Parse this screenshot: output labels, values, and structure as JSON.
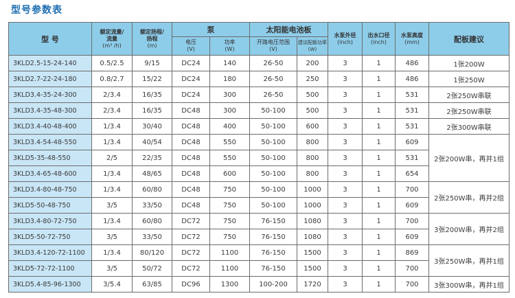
{
  "title": "型号参数表",
  "headers": {
    "model": "型 号",
    "flow": [
      "额定流量/",
      "流量",
      "(m³ /h)"
    ],
    "head": [
      "额定扬程/",
      "扬程",
      "(m)"
    ],
    "pump": "泵",
    "pump_voltage": [
      "电压",
      "(V)"
    ],
    "pump_power": [
      "功率",
      "(W)"
    ],
    "solar": "太阳能电池板",
    "solar_voltage": [
      "开路电压范围",
      "(V)"
    ],
    "solar_power": [
      "建议配板功率",
      "(W)"
    ],
    "outer_diameter": [
      "水泵外径",
      "(inch)"
    ],
    "outlet": [
      "出水口径",
      "(inch)"
    ],
    "height": [
      "水泵高度",
      "(mm)"
    ],
    "suggestion": "配板建议"
  },
  "rows": [
    [
      "3KLD2.5-15-24-140",
      "0.5/2.5",
      "9/15",
      "DC24",
      "140",
      "26-50",
      "200",
      "3",
      "1",
      "486"
    ],
    [
      "3KLD2.7-22-24-180",
      "0.8/2.7",
      "15/22",
      "DC24",
      "180",
      "26-50",
      "250",
      "3",
      "1",
      "486"
    ],
    [
      "3KLD3.4-35-24-300",
      "2/3.4",
      "16/35",
      "DC24",
      "300",
      "26-50",
      "500",
      "3",
      "1",
      "531"
    ],
    [
      "3KLD3.4-35-48-300",
      "2/3.4",
      "16/35",
      "DC48",
      "300",
      "50-100",
      "500",
      "3",
      "1",
      "531"
    ],
    [
      "3KLD3.4-40-48-400",
      "1/3.4",
      "30/40",
      "DC48",
      "400",
      "50-100",
      "600",
      "3",
      "1",
      "531"
    ],
    [
      "3KLD3.4-54-48-550",
      "1/3.4",
      "40/54",
      "DC48",
      "550",
      "50-100",
      "800",
      "3",
      "1",
      "609"
    ],
    [
      "3KLD5-35-48-550",
      "2/5",
      "22/35",
      "DC48",
      "550",
      "50-100",
      "800",
      "3",
      "1",
      "531"
    ],
    [
      "3KLD3.4-65-48-600",
      "1/3.4",
      "48/65",
      "DC48",
      "600",
      "50-100",
      "800",
      "3",
      "1",
      "654"
    ],
    [
      "3KLD3.4-80-48-750",
      "1/3.4",
      "60/80",
      "DC48",
      "750",
      "50-100",
      "1000",
      "3",
      "1",
      "700"
    ],
    [
      "3KLD5-50-48-750",
      "3/5",
      "33/50",
      "DC48",
      "750",
      "50-100",
      "1000",
      "3",
      "1",
      "609"
    ],
    [
      "3KLD3.4-80-72-750",
      "1/3.4",
      "60/80",
      "DC72",
      "750",
      "76-150",
      "1080",
      "3",
      "1",
      "700"
    ],
    [
      "3KLD5-50-72-750",
      "3/5",
      "33/50",
      "DC72",
      "750",
      "76-150",
      "1080",
      "3",
      "1",
      "609"
    ],
    [
      "3KLD3.4-120-72-1100",
      "1/3.4",
      "80/120",
      "DC72",
      "1100",
      "76-150",
      "1500",
      "3",
      "1",
      "869"
    ],
    [
      "3KLD5-72-72-1100",
      "3/5",
      "50/72",
      "DC72",
      "1100",
      "76-150",
      "1500",
      "3",
      "1",
      "700"
    ],
    [
      "3KLD5.4-85-96-1300",
      "3/5.4",
      "63/85",
      "DC96",
      "1300",
      "100-200",
      "1720",
      "3",
      "1",
      "700"
    ]
  ],
  "suggestions": [
    {
      "text": "1张200W",
      "rows": 1
    },
    {
      "text": "1张250W",
      "rows": 1
    },
    {
      "text": "2张250W串联",
      "rows": 1
    },
    {
      "text": "2张250W串联",
      "rows": 1
    },
    {
      "text": "2张300W串联",
      "rows": 1
    },
    {
      "text": "2张200W串，再并1组",
      "rows": 3
    },
    {
      "text": "2张250W串，再并2组",
      "rows": 2
    },
    {
      "text": "3张200W串，再并2组",
      "rows": 2
    },
    {
      "text": "3张250W串，再并1组",
      "rows": 2
    },
    {
      "text": "3张300W串，再并1组",
      "rows": 1
    }
  ]
}
